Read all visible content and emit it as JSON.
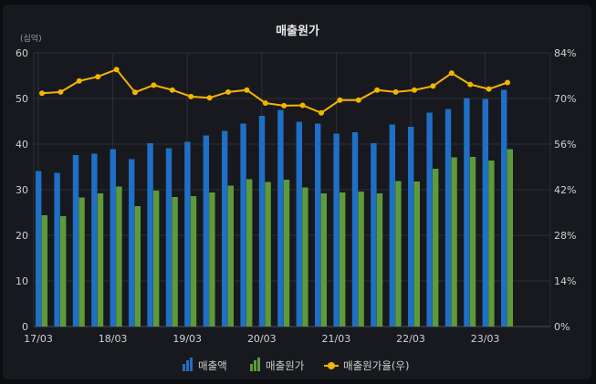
{
  "chart_data": {
    "type": "bar+line",
    "title": "매출원가",
    "unit_label": "(십억)",
    "x_tick_labels": [
      "17/03",
      "18/03",
      "19/03",
      "20/03",
      "21/03",
      "22/03",
      "23/03"
    ],
    "y_left": {
      "ylim": [
        0,
        60
      ],
      "ticks": [
        0,
        10,
        20,
        30,
        40,
        50,
        60
      ]
    },
    "y_right": {
      "ylim": [
        0,
        84
      ],
      "ticks": [
        "0%",
        "14%",
        "28%",
        "42%",
        "56%",
        "70%",
        "84%"
      ]
    },
    "grid": true,
    "legend_position": "bottom-center",
    "series": [
      {
        "name": "매출액",
        "type": "bar",
        "color": "#1f6fc5",
        "values": [
          34.1,
          33.7,
          37.6,
          37.9,
          38.9,
          36.7,
          40.2,
          39.1,
          40.5,
          41.9,
          42.9,
          44.5,
          46.2,
          47.5,
          44.9,
          44.5,
          42.3,
          42.6,
          40.2,
          44.3,
          43.8,
          46.9,
          47.7,
          50.1,
          49.9,
          51.9
        ]
      },
      {
        "name": "매출원가",
        "type": "bar",
        "color": "#5f9a3a",
        "values": [
          24.4,
          24.2,
          28.3,
          29.2,
          30.7,
          26.4,
          29.8,
          28.4,
          28.6,
          29.4,
          30.9,
          32.3,
          31.7,
          32.2,
          30.5,
          29.2,
          29.4,
          29.6,
          29.2,
          31.9,
          31.8,
          34.6,
          37.1,
          37.2,
          36.4,
          38.9
        ]
      },
      {
        "name": "매출원가율(우)",
        "type": "line",
        "axis": "right",
        "color": "#f3b500",
        "values": [
          71.6,
          72.0,
          75.4,
          76.7,
          78.9,
          71.9,
          74.1,
          72.6,
          70.6,
          70.2,
          72.0,
          72.6,
          68.6,
          67.8,
          67.9,
          65.6,
          69.5,
          69.5,
          72.6,
          72.0,
          72.6,
          73.8,
          77.8,
          74.3,
          72.9,
          74.9
        ]
      }
    ]
  }
}
